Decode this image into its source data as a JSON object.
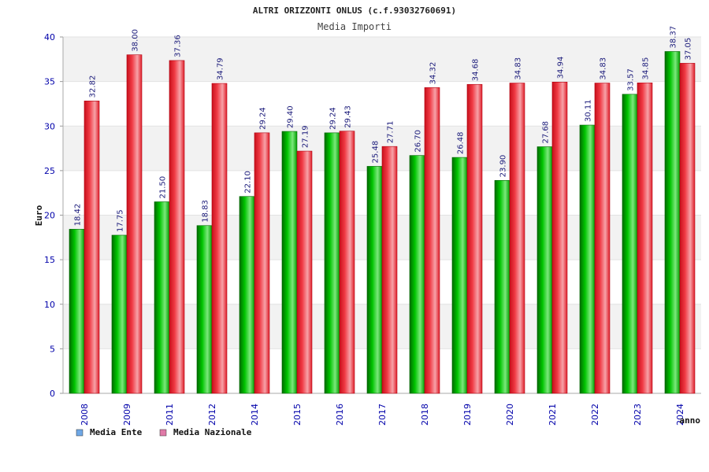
{
  "chart_data": {
    "type": "bar",
    "title": "ALTRI ORIZZONTI ONLUS (c.f.93032760691)",
    "subtitle": "Media Importi",
    "ylabel": "Euro",
    "xlabel": "anno",
    "ylim": [
      0,
      40
    ],
    "yticks": [
      0,
      5,
      10,
      15,
      20,
      25,
      30,
      35,
      40
    ],
    "grid": true,
    "legend_position": "bottom-left",
    "categories": [
      "2008",
      "2009",
      "2011",
      "2012",
      "2014",
      "2015",
      "2016",
      "2017",
      "2018",
      "2019",
      "2020",
      "2021",
      "2022",
      "2023",
      "2024"
    ],
    "series": [
      {
        "name": "Media Ente",
        "color": "#00b300",
        "legend_color": "#6fa8e6",
        "values": [
          18.42,
          17.75,
          21.5,
          18.83,
          22.1,
          29.4,
          29.24,
          25.48,
          26.7,
          26.48,
          23.9,
          27.68,
          30.11,
          33.57,
          38.37
        ],
        "labels": [
          "18.42",
          "17.75",
          "21.50",
          "18.83",
          "22.10",
          "29.40",
          "29.24",
          "25.48",
          "26.70",
          "26.48",
          "23.90",
          "27.68",
          "30.11",
          "33.57",
          "38.37"
        ]
      },
      {
        "name": "Media Nazionale",
        "color": "#e8202c",
        "legend_color": "#e07aa8",
        "values": [
          32.82,
          38.0,
          37.36,
          34.79,
          29.24,
          27.19,
          29.43,
          27.71,
          34.32,
          34.68,
          34.83,
          34.94,
          34.83,
          34.85,
          37.05
        ],
        "labels": [
          "32.82",
          "38.00",
          "37.36",
          "34.79",
          "29.24",
          "27.19",
          "29.43",
          "27.71",
          "34.32",
          "34.68",
          "34.83",
          "34.94",
          "34.83",
          "34.85",
          "37.05"
        ]
      }
    ]
  }
}
